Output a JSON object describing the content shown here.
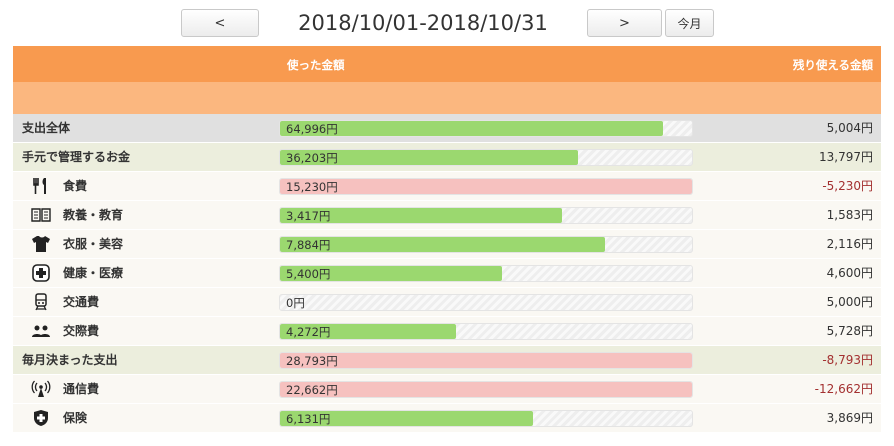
{
  "nav": {
    "prev_label": "<",
    "period": "2018/10/01-2018/10/31",
    "next_label": ">",
    "this_month_label": "今月"
  },
  "header": {
    "used_label": "使った金額",
    "remaining_label": "残り使える金額"
  },
  "colors": {
    "header": "#f89a4f",
    "subheader": "#fbb77f",
    "bar_ok": "#9bd86f",
    "bar_over": "#f6c1bf",
    "negative_text": "#a33030"
  },
  "chart_data": {
    "type": "bar",
    "rows": [
      {
        "name": "支出全体",
        "kind": "total",
        "icon": "",
        "used": "64,996円",
        "used_value": 64996,
        "budget": 70000,
        "remaining": "5,004円"
      },
      {
        "name": "手元で管理するお金",
        "kind": "group",
        "icon": "",
        "used": "36,203円",
        "used_value": 36203,
        "budget": 50000,
        "remaining": "13,797円"
      },
      {
        "name": "食費",
        "kind": "item",
        "icon": "fork-knife-icon",
        "used": "15,230円",
        "used_value": 15230,
        "budget": 10000,
        "remaining": "-5,230円"
      },
      {
        "name": "教養・教育",
        "kind": "item",
        "icon": "book-icon",
        "used": "3,417円",
        "used_value": 3417,
        "budget": 5000,
        "remaining": "1,583円"
      },
      {
        "name": "衣服・美容",
        "kind": "item",
        "icon": "shirt-icon",
        "used": "7,884円",
        "used_value": 7884,
        "budget": 10000,
        "remaining": "2,116円"
      },
      {
        "name": "健康・医療",
        "kind": "item",
        "icon": "medical-cross-icon",
        "used": "5,400円",
        "used_value": 5400,
        "budget": 10000,
        "remaining": "4,600円"
      },
      {
        "name": "交通費",
        "kind": "item",
        "icon": "train-icon",
        "used": "0円",
        "used_value": 0,
        "budget": 5000,
        "remaining": "5,000円"
      },
      {
        "name": "交際費",
        "kind": "item",
        "icon": "people-icon",
        "used": "4,272円",
        "used_value": 4272,
        "budget": 10000,
        "remaining": "5,728円"
      },
      {
        "name": "毎月決まった支出",
        "kind": "group",
        "icon": "",
        "used": "28,793円",
        "used_value": 28793,
        "budget": 20000,
        "remaining": "-8,793円"
      },
      {
        "name": "通信費",
        "kind": "item",
        "icon": "signal-tower-icon",
        "used": "22,662円",
        "used_value": 22662,
        "budget": 10000,
        "remaining": "-12,662円"
      },
      {
        "name": "保険",
        "kind": "item",
        "icon": "shield-cross-icon",
        "used": "6,131円",
        "used_value": 6131,
        "budget": 10000,
        "remaining": "3,869円"
      }
    ]
  }
}
